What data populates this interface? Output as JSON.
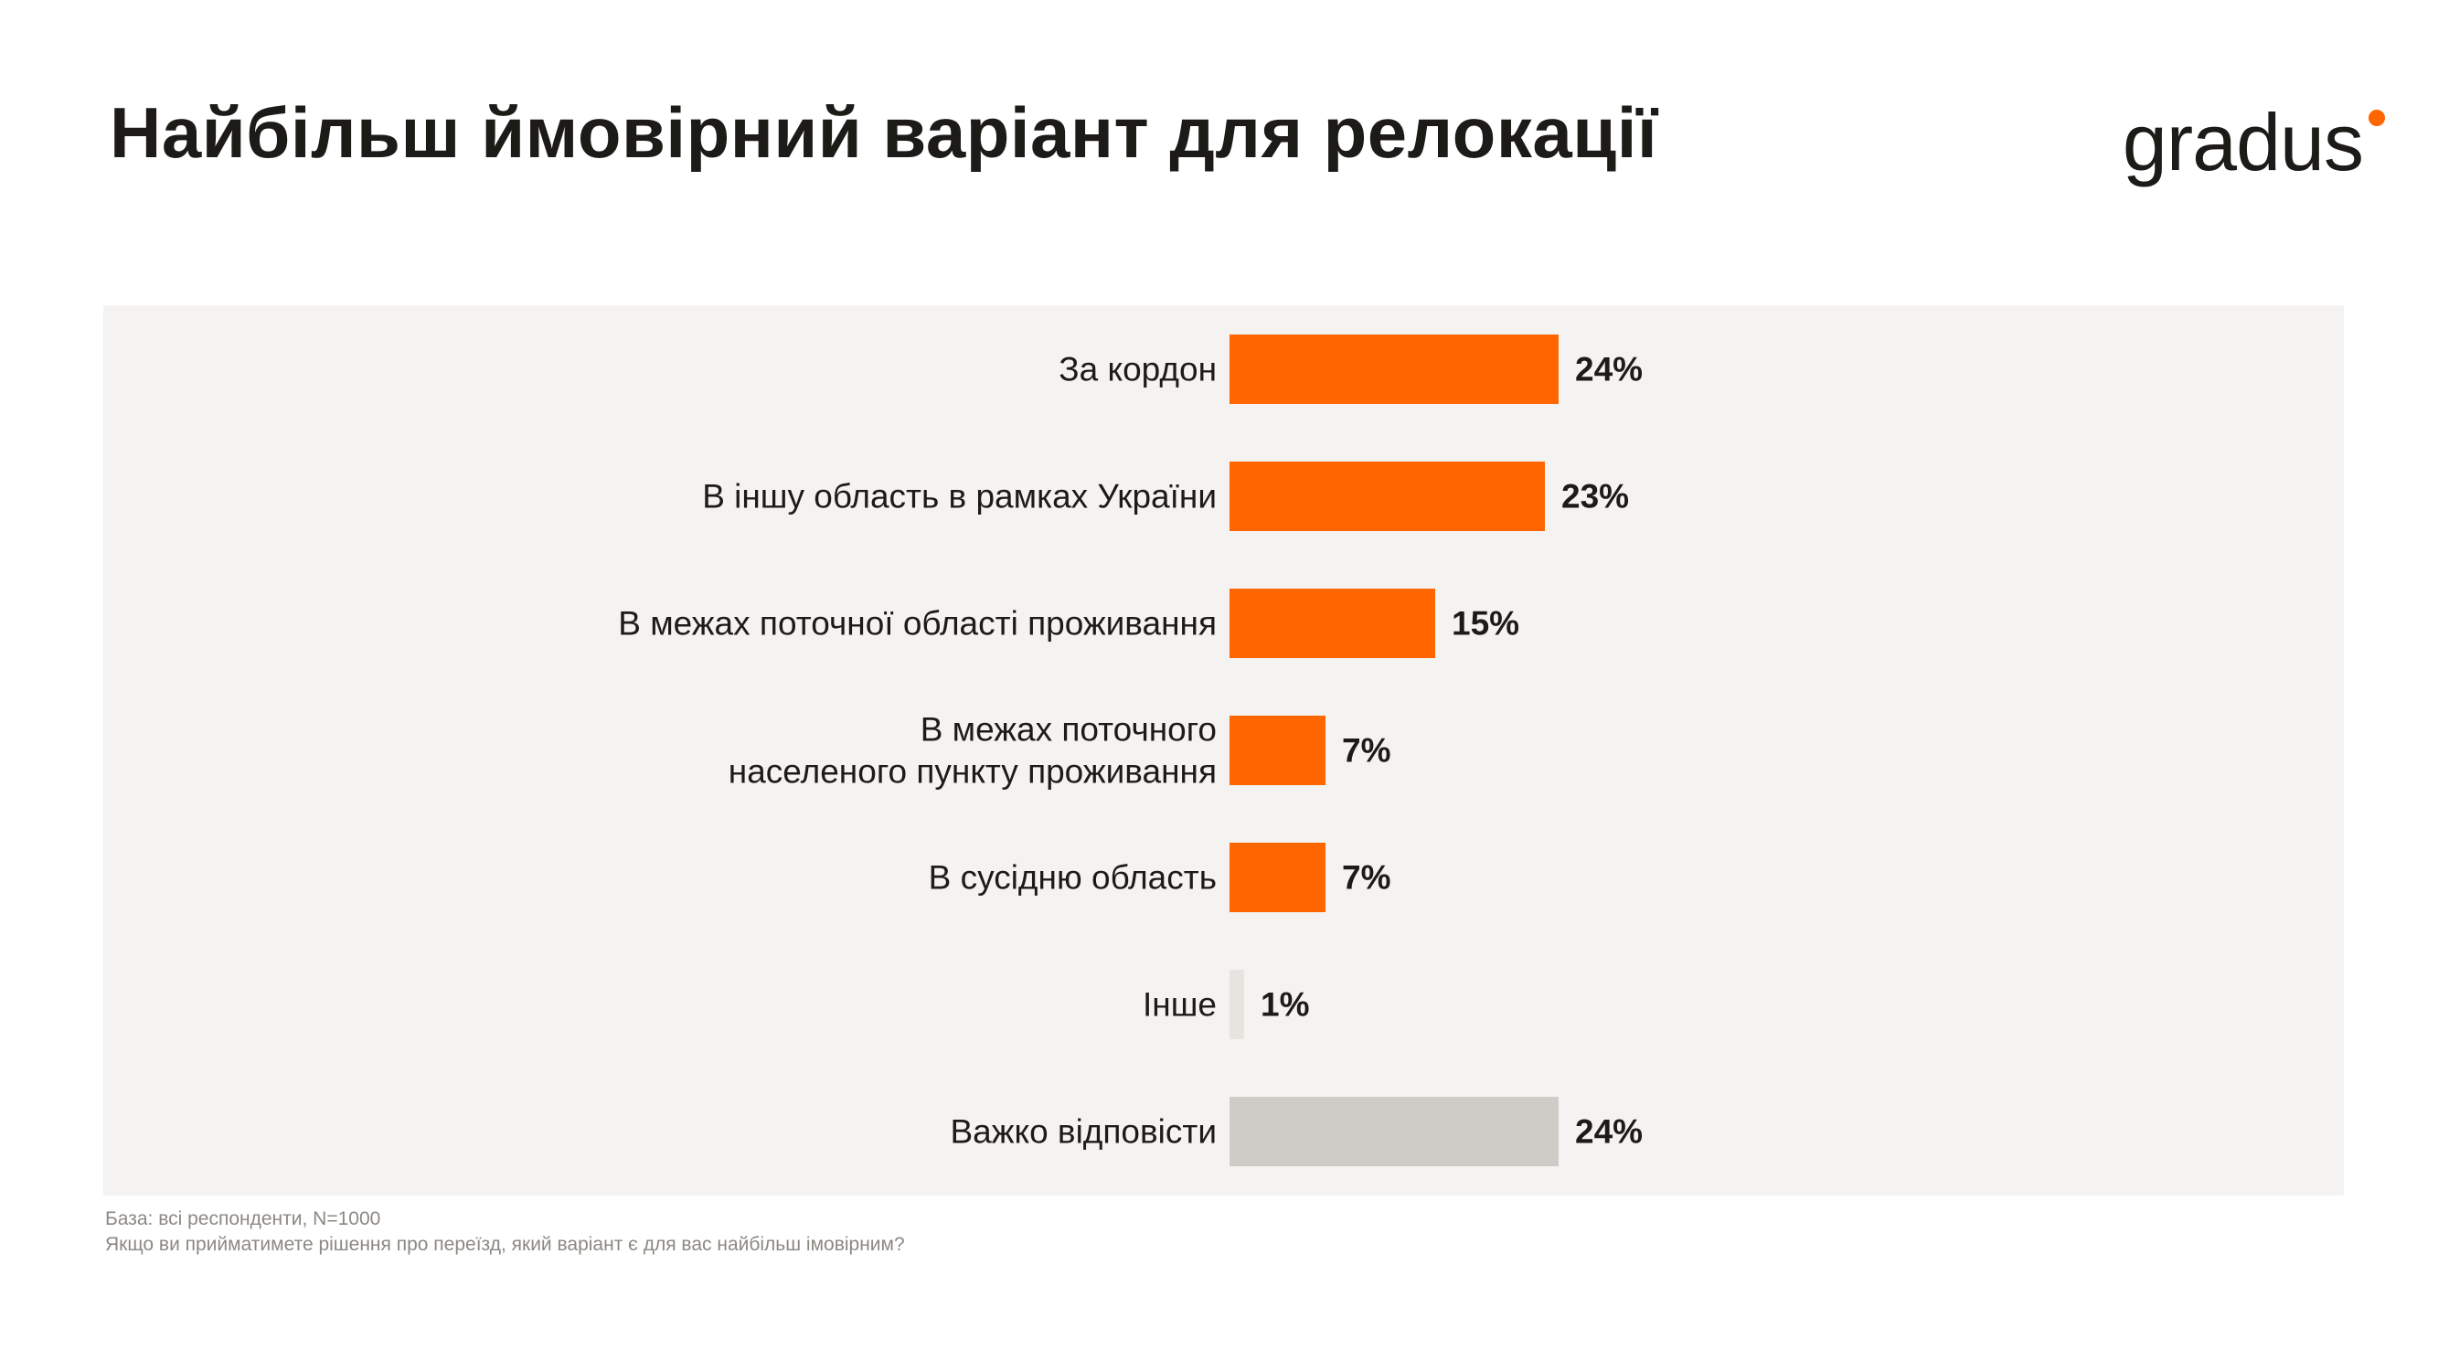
{
  "header": {
    "title": "Найбільш ймовірний варіант для релокації",
    "logo_text": "gradus"
  },
  "colors": {
    "accent": "#ff6600",
    "neutral_bar": "#cfccc8",
    "light_bar": "#e7e4e0",
    "panel_bg": "#f4f3f1",
    "text": "#1d1b18",
    "footnote": "#8c8883"
  },
  "chart_data": {
    "type": "bar",
    "orientation": "horizontal",
    "title": "",
    "xlabel": "",
    "ylabel": "",
    "xlim": [
      0,
      100
    ],
    "grid": false,
    "categories": [
      "За кордон",
      "В іншу область в рамках України",
      "В межах поточної області проживання",
      "В межах поточного населеного пункту проживання",
      "В сусідню область",
      "Інше",
      "Важко відповісти"
    ],
    "category_lines": [
      [
        "За кордон"
      ],
      [
        "В іншу область в рамках України"
      ],
      [
        "В межах поточної області проживання"
      ],
      [
        "В межах поточного",
        "населеного пункту проживання"
      ],
      [
        "В сусідню область"
      ],
      [
        "Інше"
      ],
      [
        "Важко відповісти"
      ]
    ],
    "values": [
      24,
      23,
      15,
      7,
      7,
      1,
      24
    ],
    "value_labels": [
      "24%",
      "23%",
      "15%",
      "7%",
      "7%",
      "1%",
      "24%"
    ],
    "bar_colors": [
      "#ff6600",
      "#ff6600",
      "#ff6600",
      "#ff6600",
      "#ff6600",
      "#e7e4e0",
      "#cfccc8"
    ]
  },
  "footnotes": {
    "base": "База: всі респонденти, N=1000",
    "question": "Якщо ви прийматимете рішення про переїзд, який варіант є для вас найбільш імовірним?"
  }
}
